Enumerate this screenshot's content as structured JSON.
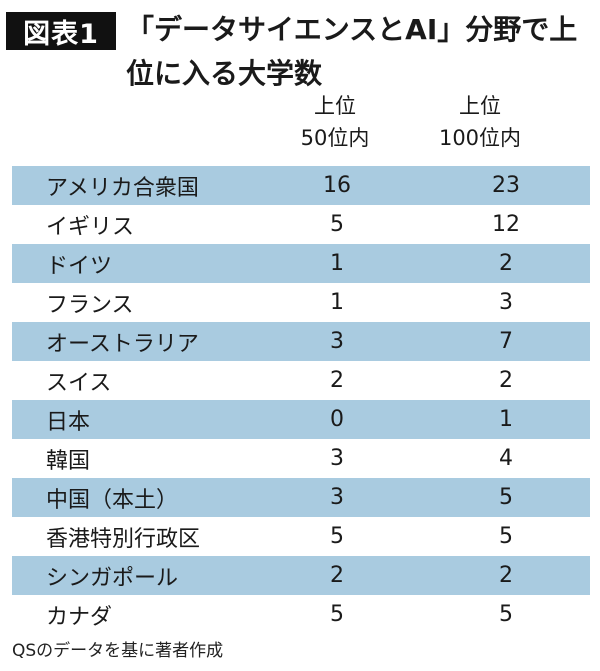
{
  "header": {
    "figure_label": "図表1",
    "title": "「データサイエンスとAI」分野で上位に入る大学数"
  },
  "columns": {
    "top50": [
      "上位",
      "50位内"
    ],
    "top100": [
      "上位",
      "100位内"
    ]
  },
  "rows": [
    {
      "country": "アメリカ合衆国",
      "top50": "16",
      "top100": "23"
    },
    {
      "country": "イギリス",
      "top50": "5",
      "top100": "12"
    },
    {
      "country": "ドイツ",
      "top50": "1",
      "top100": "2"
    },
    {
      "country": "フランス",
      "top50": "1",
      "top100": "3"
    },
    {
      "country": "オーストラリア",
      "top50": "3",
      "top100": "7"
    },
    {
      "country": "スイス",
      "top50": "2",
      "top100": "2"
    },
    {
      "country": "日本",
      "top50": "0",
      "top100": "1"
    },
    {
      "country": "韓国",
      "top50": "3",
      "top100": "4"
    },
    {
      "country": "中国（本土）",
      "top50": "3",
      "top100": "5"
    },
    {
      "country": "香港特別行政区",
      "top50": "5",
      "top100": "5"
    },
    {
      "country": "シンガポール",
      "top50": "2",
      "top100": "2"
    },
    {
      "country": "カナダ",
      "top50": "5",
      "top100": "5"
    }
  ],
  "source": "QSのデータを基に著者作成",
  "colors": {
    "shade": "#a9cbe0",
    "label_bg": "#111111"
  }
}
